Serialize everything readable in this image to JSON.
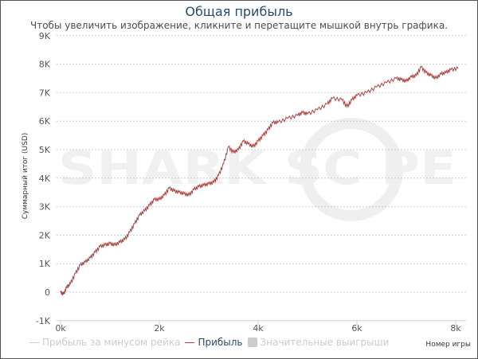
{
  "title": "Общая прибыль",
  "subtitle": "Чтобы увеличить изображение, кликните и перетащите мышкой внутрь графика.",
  "watermark": "SHARKSCOPE",
  "legend": [
    {
      "label": "Прибыль за минусом рейка",
      "color": "#cccccc",
      "active": false
    },
    {
      "label": "Прибыль",
      "color": "#aa4643",
      "active": true
    },
    {
      "label": "Значительные выигрыши",
      "color": "#cccccc",
      "active": false
    }
  ],
  "chart_data": {
    "type": "line",
    "title": "Общая прибыль",
    "xlabel": "Номер игры",
    "ylabel": "Суммарный итог (USD)",
    "xlim": [
      0,
      8100
    ],
    "ylim": [
      -1000,
      9000
    ],
    "xticks": [
      {
        "v": 0,
        "label": "0k"
      },
      {
        "v": 2000,
        "label": "2k"
      },
      {
        "v": 4000,
        "label": "4k"
      },
      {
        "v": 6000,
        "label": "6k"
      },
      {
        "v": 8000,
        "label": "8k"
      }
    ],
    "yticks": [
      {
        "v": -1000,
        "label": "-1K"
      },
      {
        "v": 0,
        "label": "0"
      },
      {
        "v": 1000,
        "label": "1K"
      },
      {
        "v": 2000,
        "label": "2K"
      },
      {
        "v": 3000,
        "label": "3K"
      },
      {
        "v": 4000,
        "label": "4K"
      },
      {
        "v": 5000,
        "label": "5K"
      },
      {
        "v": 6000,
        "label": "6K"
      },
      {
        "v": 7000,
        "label": "7K"
      },
      {
        "v": 8000,
        "label": "8K"
      },
      {
        "v": 9000,
        "label": "9K"
      }
    ],
    "grid": true,
    "series": [
      {
        "name": "Прибыль",
        "color": "#aa4643",
        "x": [
          0,
          60,
          120,
          200,
          300,
          400,
          500,
          600,
          700,
          800,
          900,
          1000,
          1100,
          1200,
          1300,
          1400,
          1500,
          1600,
          1700,
          1800,
          1900,
          2000,
          2100,
          2200,
          2300,
          2400,
          2500,
          2600,
          2700,
          2800,
          2900,
          3000,
          3100,
          3200,
          3300,
          3400,
          3500,
          3600,
          3700,
          3800,
          3900,
          4000,
          4100,
          4200,
          4300,
          4400,
          4600,
          4800,
          4900,
          5000,
          5200,
          5400,
          5500,
          5700,
          5800,
          5900,
          6000,
          6200,
          6400,
          6600,
          6800,
          6900,
          7000,
          7100,
          7200,
          7300,
          7400,
          7500,
          7600,
          7700,
          7800,
          7900,
          8050
        ],
        "y": [
          0,
          -80,
          150,
          300,
          650,
          950,
          1050,
          1200,
          1400,
          1600,
          1650,
          1700,
          1650,
          1750,
          1850,
          2100,
          2400,
          2700,
          2850,
          3050,
          3250,
          3250,
          3400,
          3650,
          3550,
          3500,
          3450,
          3400,
          3600,
          3700,
          3750,
          3800,
          3850,
          4100,
          4500,
          5100,
          4900,
          5000,
          5300,
          5200,
          5100,
          5300,
          5500,
          5700,
          5950,
          5950,
          6100,
          6200,
          6300,
          6250,
          6400,
          6600,
          6800,
          6750,
          6500,
          6750,
          6900,
          7000,
          7200,
          7350,
          7500,
          7450,
          7400,
          7550,
          7600,
          7900,
          7700,
          7600,
          7500,
          7650,
          7700,
          7800,
          7850
        ]
      }
    ]
  }
}
